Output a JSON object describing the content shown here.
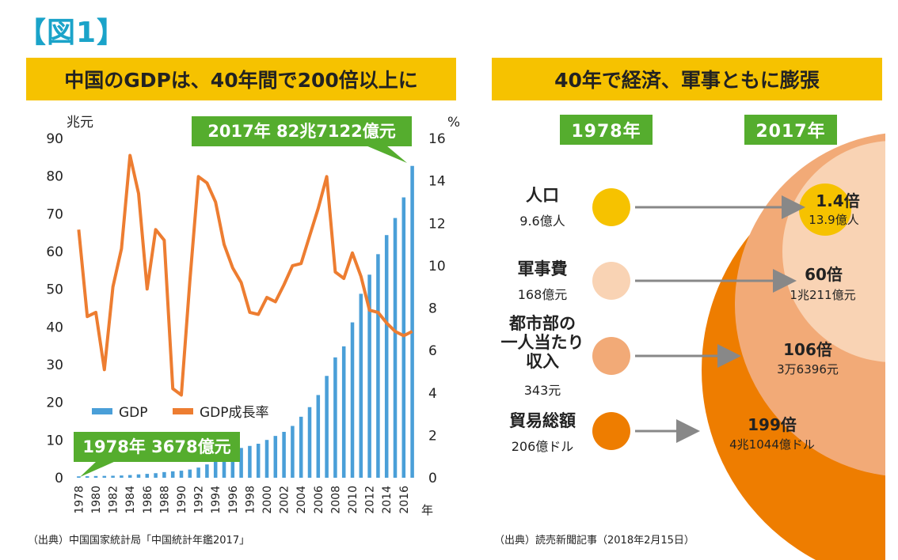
{
  "figure_label": "【図1】",
  "left_panel": {
    "banner": "中国のGDPは、40年間で200倍以上に",
    "source": "（出典）中国国家統計局「中国統計年鑑2017」"
  },
  "right_panel": {
    "banner": "40年で経済、軍事ともに膨張",
    "year_from": "1978年",
    "year_to": "2017年",
    "source": "（出典）読売新聞記事（2018年2月15日）",
    "rows": [
      {
        "label_lines": [
          "人口"
        ],
        "value": "9.6億人",
        "ratio": "1.4倍",
        "result": "13.9億人",
        "color": "#f6c200"
      },
      {
        "label_lines": [
          "軍事費"
        ],
        "value": "168億元",
        "ratio": "60倍",
        "result": "1兆211億元",
        "color": "#f9d3b4"
      },
      {
        "label_lines": [
          "都市部の",
          "一人当たり",
          "収入"
        ],
        "value": "343元",
        "ratio": "106倍",
        "result": "3万6396元",
        "color": "#f2aa77"
      },
      {
        "label_lines": [
          "貿易総額"
        ],
        "value": "206億ドル",
        "ratio": "199倍",
        "result": "4兆1044億ドル",
        "color": "#ee7d00"
      }
    ],
    "colors": {
      "outer": "#ee7d00",
      "mid": "#f2aa77",
      "inner": "#f9d3b4",
      "top": "#f6c200",
      "arrow": "#888888"
    }
  },
  "chart_data": {
    "type": "bar+line",
    "left_axis_unit": "兆元",
    "right_axis_unit": "%",
    "x_axis_unit": "年",
    "years": [
      1978,
      1979,
      1980,
      1981,
      1982,
      1983,
      1984,
      1985,
      1986,
      1987,
      1988,
      1989,
      1990,
      1991,
      1992,
      1993,
      1994,
      1995,
      1996,
      1997,
      1998,
      1999,
      2000,
      2001,
      2002,
      2003,
      2004,
      2005,
      2006,
      2007,
      2008,
      2009,
      2010,
      2011,
      2012,
      2013,
      2014,
      2015,
      2016,
      2017
    ],
    "x_tick_labels": [
      "1978",
      "1980",
      "1982",
      "1984",
      "1986",
      "1988",
      "1990",
      "1992",
      "1994",
      "1996",
      "1998",
      "2000",
      "2002",
      "2004",
      "2006",
      "2008",
      "2010",
      "2012",
      "2014",
      "2016"
    ],
    "left_yticks": [
      0,
      10,
      20,
      30,
      40,
      50,
      60,
      70,
      80,
      90
    ],
    "right_yticks": [
      0,
      2,
      4,
      6,
      8,
      10,
      12,
      14,
      16
    ],
    "left_ylim": [
      0,
      90
    ],
    "right_ylim": [
      0,
      16
    ],
    "series": [
      {
        "name": "GDP",
        "axis": "left",
        "kind": "bar",
        "color": "#4a9fd8",
        "values": [
          0.37,
          0.41,
          0.46,
          0.49,
          0.53,
          0.6,
          0.72,
          0.9,
          1.03,
          1.21,
          1.5,
          1.7,
          1.87,
          2.18,
          2.69,
          3.53,
          4.82,
          6.08,
          7.12,
          7.9,
          8.44,
          9.02,
          10.03,
          11.09,
          12.17,
          13.74,
          16.18,
          18.73,
          21.94,
          27.01,
          31.92,
          34.85,
          41.21,
          48.79,
          53.86,
          59.3,
          64.36,
          68.89,
          74.36,
          82.71
        ]
      },
      {
        "name": "GDP成長率",
        "axis": "right",
        "kind": "line",
        "color": "#ed7d31",
        "values": [
          11.7,
          7.6,
          7.8,
          5.1,
          9.0,
          10.8,
          15.2,
          13.4,
          8.9,
          11.7,
          11.2,
          4.2,
          3.9,
          9.3,
          14.2,
          13.9,
          13.0,
          11.0,
          9.9,
          9.2,
          7.8,
          7.7,
          8.5,
          8.3,
          9.1,
          10.0,
          10.1,
          11.4,
          12.7,
          14.2,
          9.7,
          9.4,
          10.6,
          9.5,
          7.9,
          7.8,
          7.3,
          6.9,
          6.7,
          6.9
        ]
      }
    ],
    "legend_position": "bottom-left",
    "annotations": [
      "2017年 82兆7122億元",
      "1978年 3678億元"
    ]
  }
}
